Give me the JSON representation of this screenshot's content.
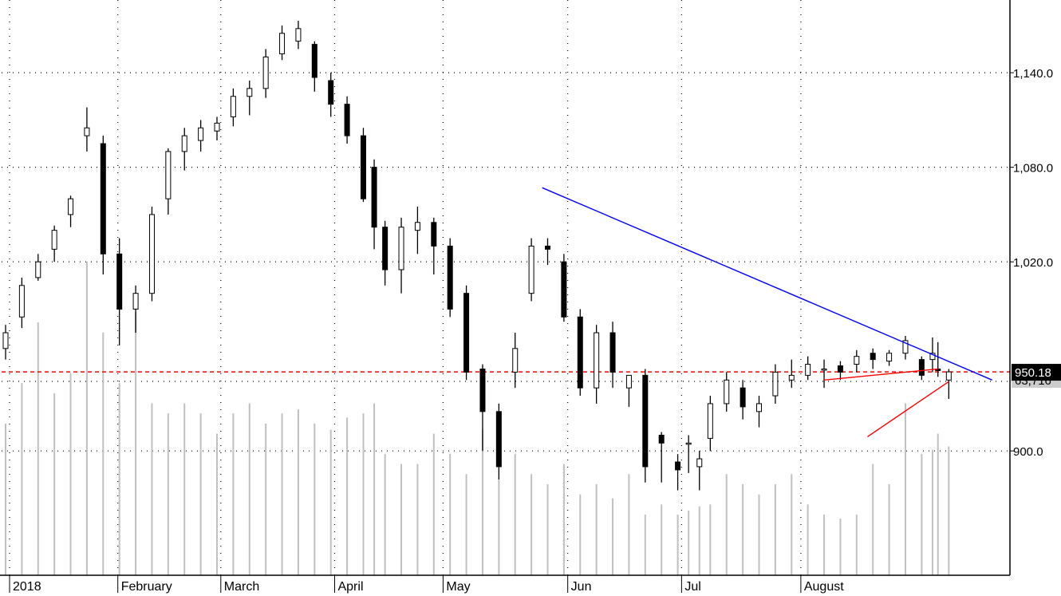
{
  "chart_data": {
    "type": "candlestick",
    "title": "",
    "xlabel": "",
    "ylabel": "",
    "ylim": [
      852,
      1175
    ],
    "yticks": [
      {
        "value": 900,
        "label": "900.0"
      },
      {
        "value": 1020,
        "label": "1,020.0"
      },
      {
        "value": 1080,
        "label": "1,080.0"
      },
      {
        "value": 1140,
        "label": "1,140.0"
      }
    ],
    "xticks": [
      "2018",
      "February",
      "March",
      "April",
      "May",
      "Jun",
      "Jul",
      "August"
    ],
    "months": [
      {
        "label": "2018",
        "start_session": 0
      },
      {
        "label": "February",
        "start_session": 21
      },
      {
        "label": "March",
        "start_session": 40
      },
      {
        "label": "April",
        "start_session": 61
      },
      {
        "label": "May",
        "start_session": 81
      },
      {
        "label": "Jun",
        "start_session": 104
      },
      {
        "label": "Jul",
        "start_session": 125
      },
      {
        "label": "August",
        "start_session": 147
      }
    ],
    "session_count": 175,
    "grid": true,
    "last_price": {
      "value": 950.18,
      "label": "950.18",
      "color": "#ff0000",
      "label_bg": "#000000",
      "label_fg": "#ffffff"
    },
    "last_volume": {
      "value": 63716,
      "label": "63,716",
      "label_bg": "#cccccc",
      "label_fg": "#000000"
    },
    "volume_scale_max": 170000,
    "series": [
      {
        "kind": "ohlc",
        "up_color": "#ffffff",
        "down_color": "#000000",
        "x": [
          0,
          3,
          6,
          9,
          12,
          15,
          18,
          21,
          24,
          27,
          30,
          33,
          36,
          39,
          42,
          45,
          48,
          51,
          54,
          57,
          60,
          63,
          66,
          68,
          70,
          73,
          76,
          79,
          82,
          85,
          88,
          91,
          94,
          97,
          100,
          103,
          106,
          109,
          112,
          115,
          118,
          121,
          124,
          126,
          128,
          130,
          133,
          136,
          139,
          142,
          145,
          148,
          151,
          154,
          157,
          160,
          163,
          166,
          169,
          171,
          172,
          174
        ],
        "open": [
          965,
          985,
          1010,
          1028,
          1050,
          1100,
          1095,
          1025,
          990,
          1000,
          1060,
          1090,
          1097,
          1103,
          1112,
          1125,
          1130,
          1152,
          1160,
          1158,
          1135,
          1120,
          1100,
          1080,
          1042,
          1015,
          1040,
          1045,
          1030,
          1000,
          952,
          925,
          950,
          1000,
          1030,
          1020,
          985,
          940,
          975,
          940,
          948,
          910,
          893,
          905,
          890,
          908,
          930,
          940,
          925,
          935,
          945,
          948,
          952,
          954,
          955,
          962,
          957,
          962,
          958,
          958,
          952,
          945
        ],
        "close": [
          975,
          1005,
          1020,
          1040,
          1060,
          1105,
          1025,
          990,
          1000,
          1050,
          1090,
          1100,
          1105,
          1108,
          1125,
          1130,
          1150,
          1165,
          1168,
          1137,
          1120,
          1100,
          1060,
          1042,
          1015,
          1042,
          1045,
          1030,
          990,
          950,
          925,
          890,
          965,
          1030,
          1028,
          985,
          940,
          975,
          950,
          948,
          890,
          905,
          888,
          905,
          895,
          930,
          945,
          928,
          930,
          950,
          948,
          955,
          952,
          950,
          960,
          958,
          962,
          970,
          948,
          962,
          951,
          950.18
        ],
        "high": [
          980,
          1010,
          1025,
          1043,
          1062,
          1118,
          1100,
          1035,
          1005,
          1055,
          1092,
          1105,
          1110,
          1112,
          1130,
          1135,
          1155,
          1170,
          1173,
          1160,
          1140,
          1125,
          1105,
          1085,
          1046,
          1048,
          1055,
          1048,
          1035,
          1005,
          955,
          930,
          975,
          1035,
          1035,
          1025,
          990,
          980,
          982,
          945,
          952,
          912,
          898,
          910,
          900,
          935,
          950,
          945,
          935,
          955,
          958,
          960,
          958,
          957,
          964,
          965,
          964,
          973,
          960,
          972,
          969,
          952
        ],
        "low": [
          958,
          978,
          1008,
          1020,
          1042,
          1090,
          1012,
          967,
          975,
          995,
          1050,
          1078,
          1090,
          1097,
          1106,
          1113,
          1124,
          1148,
          1155,
          1128,
          1112,
          1095,
          1058,
          1028,
          1005,
          1000,
          1025,
          1012,
          985,
          945,
          900,
          882,
          940,
          995,
          1018,
          982,
          935,
          930,
          940,
          928,
          880,
          880,
          875,
          886,
          875,
          900,
          925,
          920,
          915,
          930,
          940,
          945,
          940,
          945,
          950,
          952,
          954,
          958,
          945,
          950,
          947,
          933
        ]
      },
      {
        "kind": "volume",
        "color": "#c0c0c0",
        "x": [
          0,
          3,
          6,
          9,
          12,
          15,
          18,
          21,
          24,
          27,
          30,
          33,
          36,
          39,
          42,
          45,
          48,
          51,
          54,
          57,
          60,
          63,
          66,
          68,
          70,
          73,
          76,
          79,
          82,
          85,
          88,
          91,
          94,
          97,
          100,
          103,
          106,
          109,
          112,
          115,
          118,
          121,
          124,
          126,
          128,
          130,
          133,
          136,
          139,
          142,
          145,
          148,
          151,
          154,
          157,
          160,
          163,
          166,
          169,
          171,
          172,
          174
        ],
        "values": [
          75000,
          95000,
          125000,
          90000,
          100000,
          155000,
          120000,
          95000,
          130000,
          85000,
          80000,
          85000,
          80000,
          70000,
          80000,
          85000,
          75000,
          80000,
          82000,
          75000,
          72000,
          78000,
          80000,
          85000,
          60000,
          55000,
          55000,
          70000,
          60000,
          50000,
          72000,
          48000,
          60000,
          50000,
          45000,
          55000,
          40000,
          45000,
          38000,
          50000,
          30000,
          35000,
          30000,
          32000,
          34000,
          35000,
          50000,
          45000,
          40000,
          45000,
          50000,
          35000,
          30000,
          28000,
          30000,
          55000,
          45000,
          85000,
          60000,
          62000,
          70000,
          63716
        ]
      },
      {
        "kind": "trendline",
        "name": "",
        "color": "#0000ff",
        "points": [
          [
            99,
            1067
          ],
          [
            182,
            945
          ]
        ]
      },
      {
        "kind": "trendline",
        "name": "",
        "color": "#ff0000",
        "points": [
          [
            151,
            945
          ],
          [
            172,
            952
          ]
        ]
      },
      {
        "kind": "trendline",
        "name": "",
        "color": "#ff0000",
        "points": [
          [
            159,
            909
          ],
          [
            174,
            944
          ]
        ]
      }
    ]
  }
}
